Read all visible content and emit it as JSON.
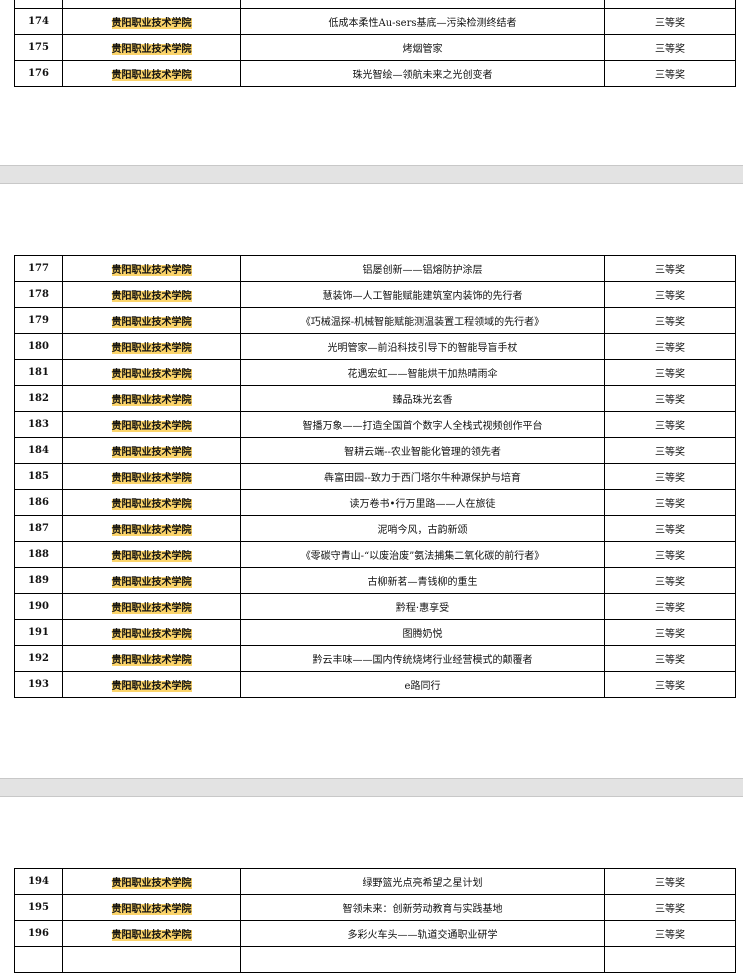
{
  "pages": [
    {
      "rows": [
        {
          "no": "",
          "school": "",
          "project": "",
          "award": ""
        },
        {
          "no": "174",
          "school": "贵阳职业技术学院",
          "project": "低成本柔性Au-sers基底—污染检测终结者",
          "award": "三等奖"
        },
        {
          "no": "175",
          "school": "贵阳职业技术学院",
          "project": "烤烟管家",
          "award": "三等奖"
        },
        {
          "no": "176",
          "school": "贵阳职业技术学院",
          "project": "珠光智绘—领航未来之光创变者",
          "award": "三等奖"
        }
      ]
    },
    {
      "rows": [
        {
          "no": "177",
          "school": "贵阳职业技术学院",
          "project": "铝屡创新——铝熔防护涂层",
          "award": "三等奖"
        },
        {
          "no": "178",
          "school": "贵阳职业技术学院",
          "project": "慧装饰—人工智能赋能建筑室内装饰的先行者",
          "award": "三等奖"
        },
        {
          "no": "179",
          "school": "贵阳职业技术学院",
          "project": "《巧械温探-机械智能赋能测温装置工程领域的先行者》",
          "award": "三等奖"
        },
        {
          "no": "180",
          "school": "贵阳职业技术学院",
          "project": "光明管家—前沿科技引导下的智能导盲手杖",
          "award": "三等奖"
        },
        {
          "no": "181",
          "school": "贵阳职业技术学院",
          "project": "花遇宏虹——智能烘干加热晴雨伞",
          "award": "三等奖"
        },
        {
          "no": "182",
          "school": "贵阳职业技术学院",
          "project": "臻品珠光玄香",
          "award": "三等奖"
        },
        {
          "no": "183",
          "school": "贵阳职业技术学院",
          "project": "智播万象——打造全国首个数字人全栈式视频创作平台",
          "award": "三等奖"
        },
        {
          "no": "184",
          "school": "贵阳职业技术学院",
          "project": "智耕云端--农业智能化管理的领先者",
          "award": "三等奖"
        },
        {
          "no": "185",
          "school": "贵阳职业技术学院",
          "project": "犇富田园--致力于西门塔尔牛种源保护与培育",
          "award": "三等奖"
        },
        {
          "no": "186",
          "school": "贵阳职业技术学院",
          "project": "读万卷书•行万里路——人在旅徒",
          "award": "三等奖"
        },
        {
          "no": "187",
          "school": "贵阳职业技术学院",
          "project": "泥哨今风，古韵新颂",
          "award": "三等奖"
        },
        {
          "no": "188",
          "school": "贵阳职业技术学院",
          "project": "《零碳守青山-“以废治废”氨法捕集二氧化碳的前行者》",
          "award": "三等奖"
        },
        {
          "no": "189",
          "school": "贵阳职业技术学院",
          "project": "古柳新茗—青钱柳的重生",
          "award": "三等奖"
        },
        {
          "no": "190",
          "school": "贵阳职业技术学院",
          "project": "黔程·惠享受",
          "award": "三等奖"
        },
        {
          "no": "191",
          "school": "贵阳职业技术学院",
          "project": "图腾奶悦",
          "award": "三等奖"
        },
        {
          "no": "192",
          "school": "贵阳职业技术学院",
          "project": "黔云丰味——国内传统烧烤行业经营模式的颠覆者",
          "award": "三等奖"
        },
        {
          "no": "193",
          "school": "贵阳职业技术学院",
          "project": "e路同行",
          "award": "三等奖"
        }
      ]
    },
    {
      "rows": [
        {
          "no": "194",
          "school": "贵阳职业技术学院",
          "project": "绿野篮光点亮希望之星计划",
          "award": "三等奖"
        },
        {
          "no": "195",
          "school": "贵阳职业技术学院",
          "project": "智领未来：创新劳动教育与实践基地",
          "award": "三等奖"
        },
        {
          "no": "196",
          "school": "贵阳职业技术学院",
          "project": "多彩火车头——轨道交通职业研学",
          "award": "三等奖"
        },
        {
          "no": "",
          "school": "",
          "project": "",
          "award": ""
        }
      ]
    }
  ],
  "highlight_color": "#fbd46a"
}
